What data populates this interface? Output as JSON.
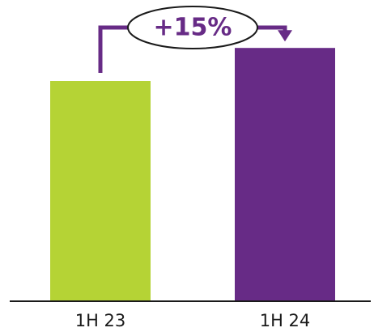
{
  "chart_data": {
    "type": "bar",
    "categories": [
      "1H 23",
      "1H 24"
    ],
    "values": [
      100,
      115
    ],
    "ylim": [
      0,
      125
    ],
    "grid": false,
    "colors": [
      "#b5d335",
      "#672b86"
    ],
    "annotation": {
      "text": "+15%",
      "from_category": "1H 23",
      "to_category": "1H 24",
      "color": "#672b86"
    }
  }
}
